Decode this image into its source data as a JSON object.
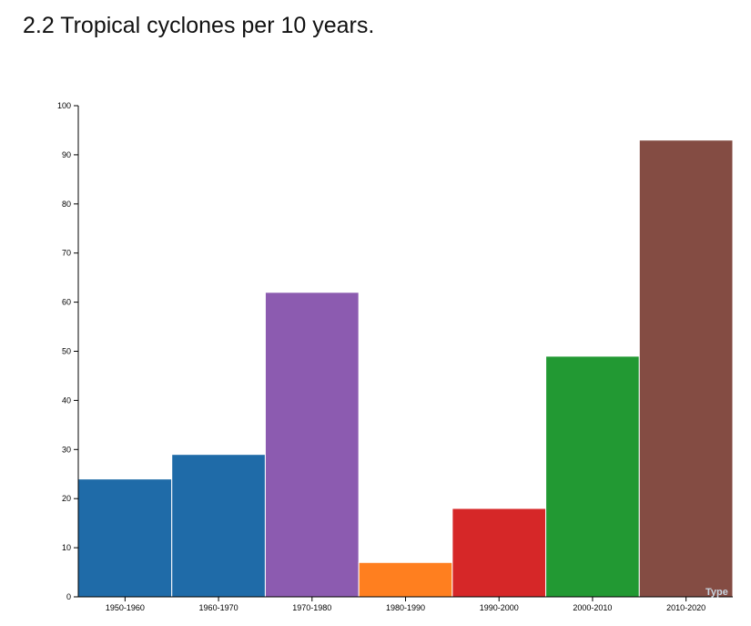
{
  "page": {
    "title": "2.2 Tropical cyclones per 10 years."
  },
  "chart_data": {
    "type": "bar",
    "title": "",
    "xlabel": "",
    "ylabel": "",
    "ylim": [
      0,
      100
    ],
    "y_ticks": [
      "0",
      "10",
      "20",
      "30",
      "40",
      "50",
      "60",
      "70",
      "80",
      "90",
      "100"
    ],
    "categories": [
      "1950-1960",
      "1960-1970",
      "1970-1980",
      "1980-1990",
      "1990-2000",
      "2000-2010",
      "2010-2020"
    ],
    "values": [
      24,
      29,
      62,
      7,
      18,
      49,
      93
    ],
    "colors": [
      "#1f6ba8",
      "#1f6ba8",
      "#8c5bb0",
      "#ff7f1f",
      "#d62728",
      "#229933",
      "#844c43"
    ],
    "legend_hint": "Type",
    "grid": false,
    "legend": "bottom-right (partially hidden)"
  }
}
